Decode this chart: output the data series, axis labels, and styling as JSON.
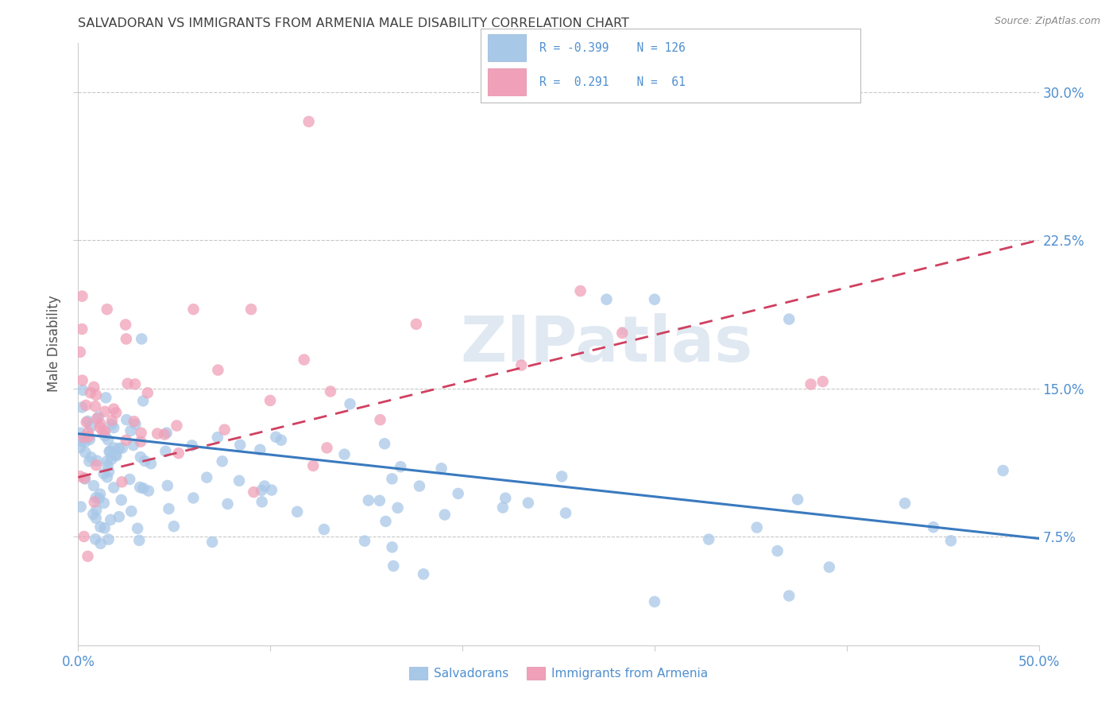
{
  "title": "SALVADORAN VS IMMIGRANTS FROM ARMENIA MALE DISABILITY CORRELATION CHART",
  "source": "Source: ZipAtlas.com",
  "ylabel": "Male Disability",
  "yticks": [
    "7.5%",
    "15.0%",
    "22.5%",
    "30.0%"
  ],
  "ytick_vals": [
    0.075,
    0.15,
    0.225,
    0.3
  ],
  "xmin": 0.0,
  "xmax": 0.5,
  "ymin": 0.02,
  "ymax": 0.325,
  "watermark": "ZIPatlas",
  "legend_label_blue": "Salvadorans",
  "legend_label_pink": "Immigrants from Armenia",
  "blue_color": "#a8c8e8",
  "blue_line_color": "#3a7abf",
  "pink_color": "#f0a0b8",
  "pink_line_color": "#d04060",
  "blue_line_x": [
    0.0,
    0.5
  ],
  "blue_line_y": [
    0.127,
    0.074
  ],
  "pink_line_x": [
    0.0,
    0.5
  ],
  "pink_line_y": [
    0.105,
    0.225
  ],
  "background_color": "#ffffff",
  "grid_color": "#c8c8c8",
  "title_color": "#404040",
  "tick_color": "#5090d0"
}
